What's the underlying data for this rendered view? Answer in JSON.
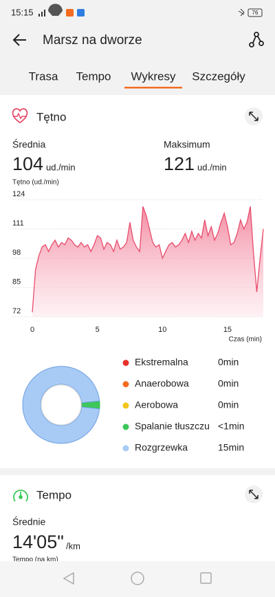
{
  "status_bar": {
    "time": "15:15",
    "battery": "76"
  },
  "header": {
    "title": "Marsz na dworze"
  },
  "tabs": {
    "items": [
      "Trasa",
      "Tempo",
      "Wykresy",
      "Szczegóły"
    ],
    "active": 2
  },
  "heart_rate": {
    "title": "Tętno",
    "stats": [
      {
        "label": "Średnia",
        "value": "104",
        "unit": "ud./min"
      },
      {
        "label": "Maksimum",
        "value": "121",
        "unit": "ud./min"
      }
    ],
    "chart_data": {
      "type": "area",
      "ylabel": "Tętno (ud./min)",
      "xlabel": "Czas (min)",
      "color": "#e84a6a",
      "xlim": [
        0,
        17.75
      ],
      "ylim": [
        72,
        124
      ],
      "xticks": [
        0,
        5,
        10,
        15
      ],
      "yticks": [
        72,
        85,
        98,
        111,
        124
      ],
      "grid": true,
      "x": [
        0,
        0.25,
        0.5,
        0.75,
        1,
        1.25,
        1.5,
        1.75,
        2,
        2.25,
        2.5,
        2.75,
        3,
        3.25,
        3.5,
        3.75,
        4,
        4.25,
        4.5,
        4.75,
        5,
        5.25,
        5.5,
        5.75,
        6,
        6.25,
        6.5,
        6.75,
        7,
        7.25,
        7.5,
        7.75,
        8,
        8.25,
        8.5,
        8.75,
        9,
        9.25,
        9.5,
        9.75,
        10,
        10.25,
        10.5,
        10.75,
        11,
        11.25,
        11.5,
        11.75,
        12,
        12.25,
        12.5,
        12.75,
        13,
        13.25,
        13.5,
        13.75,
        14,
        14.25,
        14.5,
        14.75,
        15,
        15.25,
        15.5,
        15.75,
        16,
        16.25,
        16.5,
        16.75,
        17,
        17.25,
        17.5,
        17.75
      ],
      "values": [
        74,
        93,
        99,
        103,
        104,
        101,
        104,
        106,
        103,
        105,
        104,
        107,
        106,
        104,
        103,
        105,
        103,
        104,
        101,
        104,
        108,
        107,
        102,
        105,
        104,
        101,
        106,
        102,
        103,
        105,
        114,
        106,
        103,
        101,
        121,
        117,
        111,
        105,
        103,
        104,
        98,
        101,
        104,
        105,
        103,
        104,
        106,
        109,
        105,
        110,
        106,
        109,
        107,
        115,
        108,
        112,
        106,
        109,
        114,
        118,
        112,
        104,
        105,
        109,
        115,
        111,
        114,
        121,
        100,
        83,
        98,
        111
      ]
    },
    "zones": {
      "type": "donut",
      "items": [
        {
          "name": "Ekstremalna",
          "value": 0,
          "value_label": "0min",
          "color": "#e8312a"
        },
        {
          "name": "Anaerobowa",
          "value": 0,
          "value_label": "0min",
          "color": "#f36c21"
        },
        {
          "name": "Aerobowa",
          "value": 0,
          "value_label": "0min",
          "color": "#f5c518"
        },
        {
          "name": "Spalanie tłuszczu",
          "value": 0.5,
          "value_label": "<1min",
          "color": "#3cc85a"
        },
        {
          "name": "Rozgrzewka",
          "value": 15,
          "value_label": "15min",
          "color": "#a8cbf6"
        }
      ]
    }
  },
  "pace": {
    "title": "Tempo",
    "label": "Średnie",
    "value": "14'05\"",
    "unit": "/km",
    "sublabel": "Tempo (na km)"
  }
}
